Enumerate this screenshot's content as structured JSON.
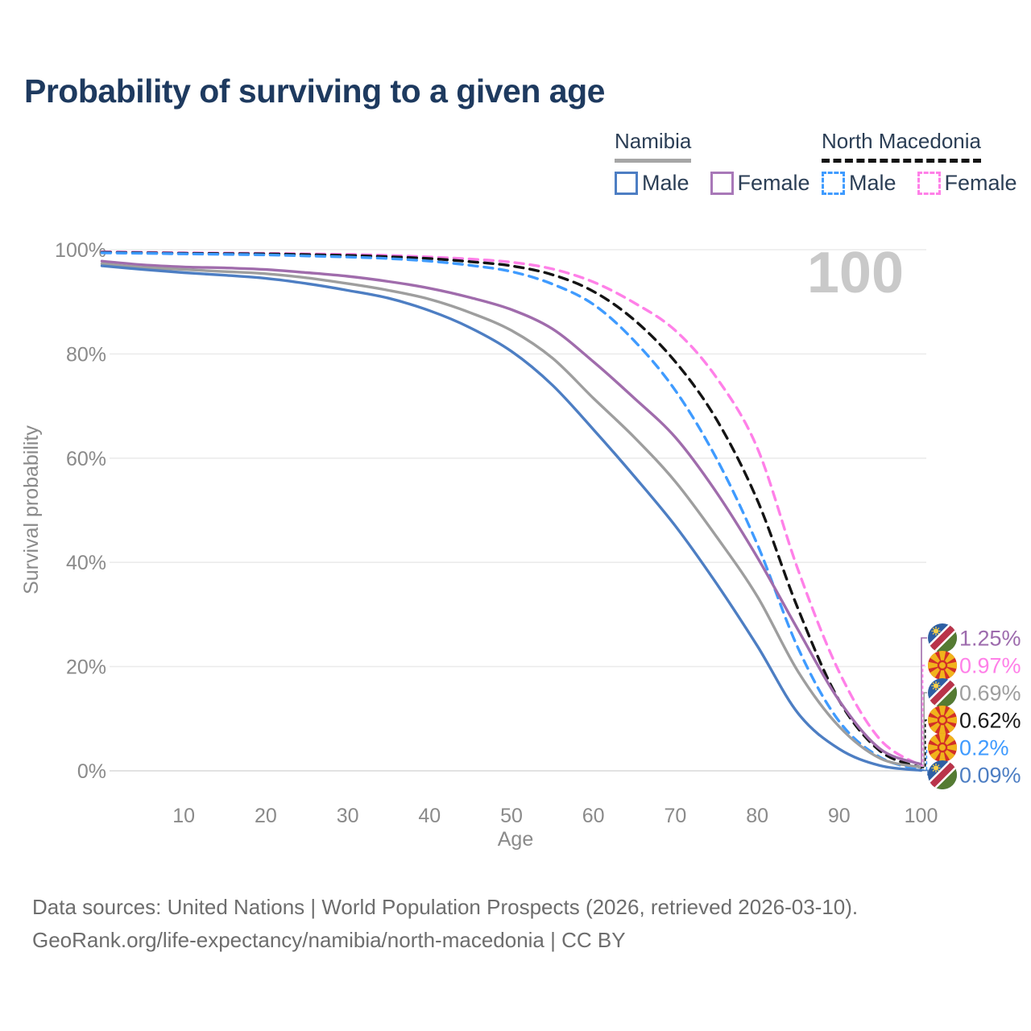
{
  "title": {
    "text": "Probability of surviving to a given age"
  },
  "legend": {
    "groups": [
      {
        "name": "Namibia",
        "underline_style": "solid",
        "underline_color": "#a6a6a6",
        "items": [
          {
            "label": "Male",
            "color": "#4d7ec3",
            "line_style": "solid"
          },
          {
            "label": "Female",
            "color": "#a878b8",
            "line_style": "solid"
          }
        ]
      },
      {
        "name": "North Macedonia",
        "underline_style": "dashed",
        "underline_color": "#141414",
        "items": [
          {
            "label": "Male",
            "color": "#3f9bff",
            "line_style": "dashed"
          },
          {
            "label": "Female",
            "color": "#ff80e8",
            "line_style": "dashed"
          }
        ]
      }
    ]
  },
  "watermark": "100",
  "chart_data": {
    "type": "line",
    "title": "Probability of surviving to a given age",
    "xlabel": "Age",
    "ylabel": "Survival probability",
    "xlim": [
      0,
      100
    ],
    "ylim": [
      0,
      100
    ],
    "grid": "horizontal",
    "x_ticks": [
      10,
      20,
      30,
      40,
      50,
      60,
      70,
      80,
      90,
      100
    ],
    "y_ticks": [
      {
        "label": "0%",
        "value": 0
      },
      {
        "label": "20%",
        "value": 20
      },
      {
        "label": "40%",
        "value": 40
      },
      {
        "label": "60%",
        "value": 60
      },
      {
        "label": "80%",
        "value": 80
      },
      {
        "label": "100%",
        "value": 100
      }
    ],
    "legend_position": "top-right",
    "ages": [
      0,
      5,
      10,
      15,
      20,
      25,
      30,
      35,
      40,
      45,
      50,
      55,
      60,
      65,
      70,
      75,
      80,
      85,
      90,
      95,
      100
    ],
    "series": [
      {
        "name": "North Macedonia — Female",
        "color": "#ff80e8",
        "dash": "dashed",
        "values": [
          99.6,
          99.5,
          99.4,
          99.35,
          99.3,
          99.2,
          99.1,
          98.9,
          98.6,
          98.2,
          97.6,
          96.3,
          93.8,
          89.8,
          84.5,
          75.5,
          62.0,
          38.5,
          19.0,
          6.0,
          0.97
        ]
      },
      {
        "name": "North Macedonia — Both sexes",
        "color": "#141414",
        "dash": "dashed",
        "values": [
          99.5,
          99.4,
          99.3,
          99.25,
          99.2,
          99.05,
          98.9,
          98.65,
          98.3,
          97.7,
          96.9,
          95.2,
          92.0,
          86.5,
          78.5,
          67.5,
          52.0,
          31.0,
          13.5,
          3.8,
          0.62
        ]
      },
      {
        "name": "North Macedonia — Male",
        "color": "#3f9bff",
        "dash": "dashed",
        "values": [
          99.4,
          99.3,
          99.2,
          99.1,
          99.0,
          98.8,
          98.6,
          98.3,
          97.8,
          97.0,
          95.8,
          93.4,
          89.5,
          82.5,
          73.0,
          60.0,
          43.5,
          23.5,
          9.5,
          2.6,
          0.2
        ]
      },
      {
        "name": "Namibia — Female",
        "color": "#a06cac",
        "dash": "solid",
        "values": [
          97.8,
          97.1,
          96.7,
          96.5,
          96.2,
          95.6,
          94.9,
          93.9,
          92.6,
          90.8,
          88.5,
          84.8,
          78.5,
          71.5,
          64.0,
          53.5,
          41.0,
          27.0,
          13.5,
          4.2,
          1.25
        ]
      },
      {
        "name": "Namibia — Both sexes",
        "color": "#9e9e9e",
        "dash": "solid",
        "values": [
          97.3,
          96.6,
          96.2,
          95.8,
          95.4,
          94.6,
          93.5,
          92.2,
          90.5,
          87.9,
          84.5,
          79.2,
          71.5,
          64.0,
          55.5,
          45.0,
          33.5,
          19.0,
          8.5,
          2.4,
          0.69
        ]
      },
      {
        "name": "Namibia — Male",
        "color": "#4d7ec3",
        "dash": "solid",
        "values": [
          96.9,
          96.2,
          95.6,
          95.1,
          94.5,
          93.5,
          92.2,
          90.7,
          88.3,
          85.0,
          80.5,
          74.0,
          65.5,
          56.5,
          47.0,
          36.0,
          24.0,
          11.0,
          4.2,
          1.0,
          0.09
        ]
      }
    ],
    "end_labels": [
      {
        "text": "1.25%",
        "series": "Namibia — Female",
        "flag": "namibia",
        "color": "#9d6bad"
      },
      {
        "text": "0.97%",
        "series": "North Macedonia — Female",
        "flag": "north-macedonia",
        "color": "#ff80e8"
      },
      {
        "text": "0.69%",
        "series": "Namibia — Both sexes",
        "flag": "namibia",
        "color": "#9e9e9e"
      },
      {
        "text": "0.62%",
        "series": "North Macedonia — Both sexes",
        "flag": "north-macedonia",
        "color": "#1a1a1a"
      },
      {
        "text": "0.2%",
        "series": "North Macedonia — Male",
        "flag": "north-macedonia",
        "color": "#3f9bff"
      },
      {
        "text": "0.09%",
        "series": "Namibia — Male",
        "flag": "namibia",
        "color": "#4d7ec3"
      }
    ]
  },
  "footer": {
    "line1": "Data sources: United Nations | World Population Prospects (2026, retrieved 2026-03-10).",
    "line2": "GeoRank.org/life-expectancy/namibia/north-macedonia | CC BY"
  }
}
